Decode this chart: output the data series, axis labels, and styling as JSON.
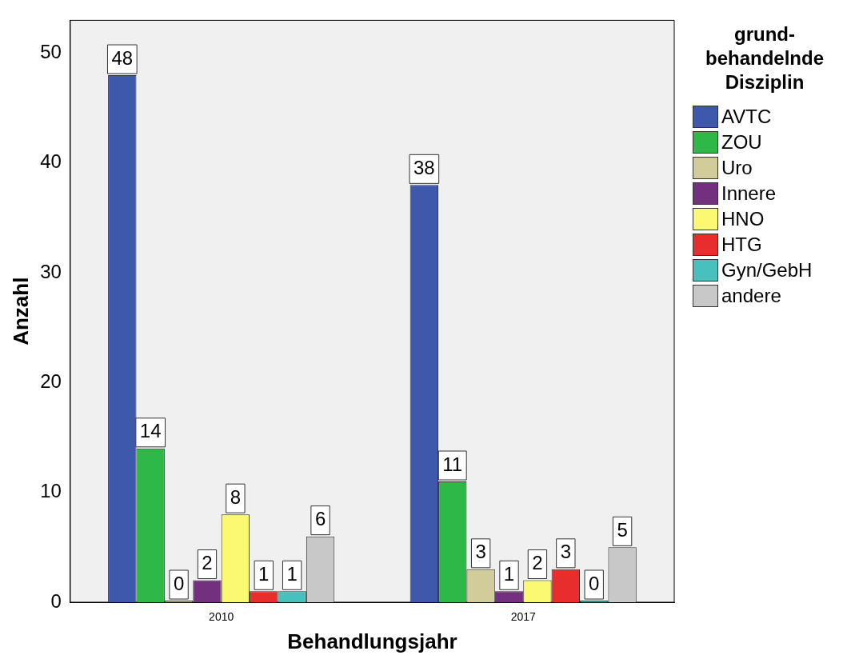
{
  "chart_data": {
    "type": "bar",
    "xlabel": "Behandlungsjahr",
    "ylabel": "Anzahl",
    "legend_title": "grund-behandelnde Disziplin",
    "categories": [
      "2010",
      "2017"
    ],
    "series": [
      {
        "name": "AVTC",
        "color": "#3e58ac",
        "values": [
          48,
          38
        ]
      },
      {
        "name": "ZOU",
        "color": "#2eb848",
        "values": [
          14,
          11
        ]
      },
      {
        "name": "Uro",
        "color": "#d2cc9a",
        "values": [
          0,
          3
        ]
      },
      {
        "name": "Innere",
        "color": "#72307f",
        "values": [
          2,
          1
        ]
      },
      {
        "name": "HNO",
        "color": "#fbf872",
        "values": [
          8,
          2
        ]
      },
      {
        "name": "HTG",
        "color": "#e82d2d",
        "values": [
          1,
          3
        ]
      },
      {
        "name": "Gyn/GebH",
        "color": "#48c0be",
        "values": [
          1,
          0
        ]
      },
      {
        "name": "andere",
        "color": "#c8c8c8",
        "values": [
          6,
          5
        ]
      }
    ],
    "ylim": [
      0,
      53
    ],
    "yticks": [
      0,
      10,
      20,
      30,
      40,
      50
    ],
    "grid": false,
    "legend": "right",
    "data_labels": true
  }
}
